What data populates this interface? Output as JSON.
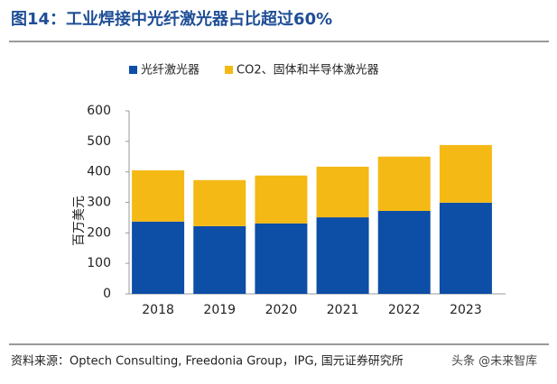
{
  "chart_data": {
    "type": "stacked-bar",
    "title": "图14：工业焊接中光纤激光器占比超过60%",
    "y_label": "百万美元",
    "categories": [
      "2018",
      "2019",
      "2020",
      "2021",
      "2022",
      "2023"
    ],
    "series": [
      {
        "name": "光纤激光器",
        "color": "#0d4ea6",
        "values": [
          237,
          222,
          231,
          251,
          272,
          299
        ]
      },
      {
        "name": "CO2、固体和半导体激光器",
        "color": "#f5b915",
        "values": [
          168,
          151,
          157,
          166,
          178,
          189
        ]
      }
    ],
    "ylim": [
      0,
      600
    ],
    "yticks": [
      0,
      100,
      200,
      300,
      400,
      500,
      600
    ],
    "legend": "top",
    "source": "资料来源：Optech Consulting, Freedonia Group，IPG, 国元证券研究所",
    "watermark": "头条 @未来智库"
  }
}
